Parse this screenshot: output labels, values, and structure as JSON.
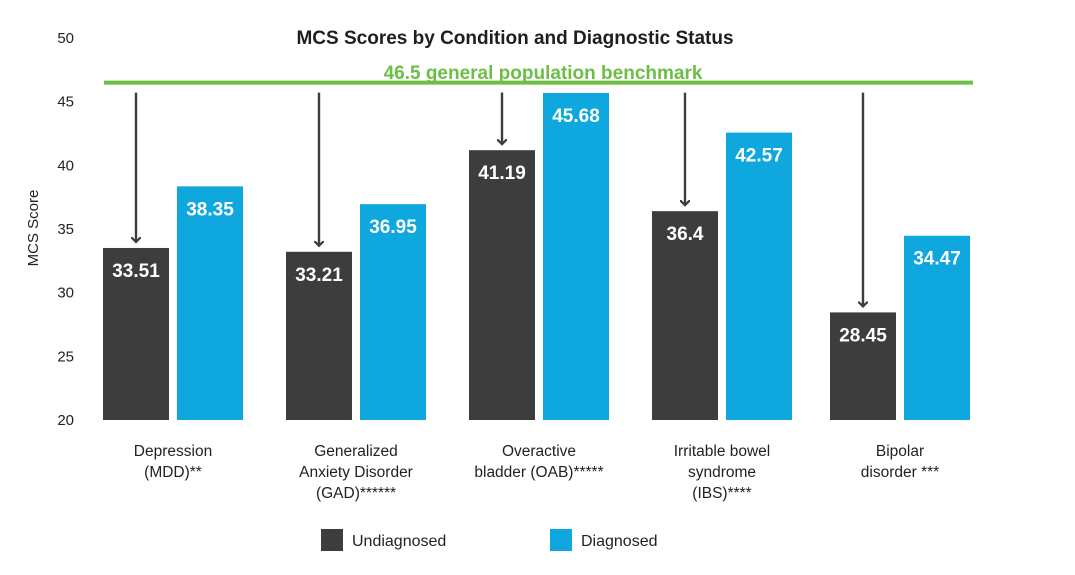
{
  "chart_data": {
    "type": "bar",
    "title": "MCS Scores by Condition and Diagnostic Status",
    "ylabel": "MCS Score",
    "xlabel": "",
    "ylim": [
      20,
      50
    ],
    "yticks": [
      20,
      25,
      30,
      35,
      40,
      45,
      50
    ],
    "grid": false,
    "benchmark": {
      "value": 46.5,
      "label": "46.5 general population benchmark",
      "color": "#6cbe45"
    },
    "categories": [
      [
        "Depression",
        "(MDD)**"
      ],
      [
        "Generalized",
        "Anxiety Disorder",
        "(GAD)******"
      ],
      [
        "Overactive",
        "bladder (OAB)*****"
      ],
      [
        "Irritable bowel",
        "syndrome",
        "(IBS)****"
      ],
      [
        "Bipolar",
        "disorder ***"
      ]
    ],
    "series": [
      {
        "name": "Undiagnosed",
        "color": "#3d3d3d",
        "values": [
          33.51,
          33.21,
          41.19,
          36.4,
          28.45
        ]
      },
      {
        "name": "Diagnosed",
        "color": "#0ea7de",
        "values": [
          38.35,
          36.95,
          45.68,
          42.57,
          34.47
        ]
      }
    ],
    "annotations": "downward arrows from benchmark to each undiagnosed bar",
    "legend_position": "bottom-center"
  }
}
